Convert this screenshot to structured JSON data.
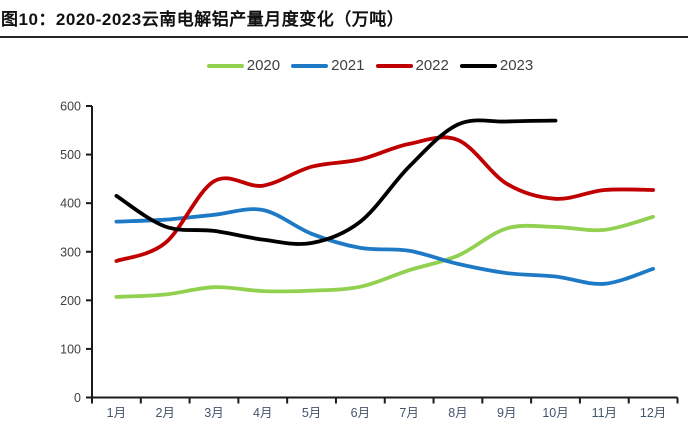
{
  "header": {
    "title": "图10：2020-2023云南电解铝产量月度变化（万吨）"
  },
  "chart_data": {
    "type": "line",
    "title": "图10：2020-2023云南电解铝产量月度变化（万吨）",
    "xlabel": "",
    "ylabel": "",
    "unit": "万吨",
    "categories": [
      "1月",
      "2月",
      "3月",
      "4月",
      "5月",
      "6月",
      "7月",
      "8月",
      "9月",
      "10月",
      "11月",
      "12月"
    ],
    "y_ticks": [
      "0",
      "100",
      "200",
      "300",
      "400",
      "500",
      "600"
    ],
    "ylim": [
      0,
      600
    ],
    "ytick_step": 100,
    "grid": false,
    "legend_position": "top",
    "series": [
      {
        "name": "2020",
        "color": "#92D050",
        "values": [
          207,
          212,
          227,
          219,
          220,
          228,
          262,
          292,
          348,
          351,
          345,
          372
        ]
      },
      {
        "name": "2021",
        "color": "#1F7AC5",
        "values": [
          362,
          366,
          376,
          386,
          337,
          308,
          302,
          275,
          256,
          249,
          234,
          265
        ]
      },
      {
        "name": "2022",
        "color": "#C00000",
        "values": [
          281,
          318,
          445,
          436,
          475,
          490,
          522,
          530,
          440,
          409,
          427,
          427
        ]
      },
      {
        "name": "2023",
        "color": "#000000",
        "values": [
          415,
          352,
          343,
          325,
          318,
          362,
          475,
          562,
          568,
          570
        ]
      }
    ]
  },
  "style_colors": {
    "axis": "#1a1a1a",
    "tick_label": "#44546A",
    "y_label": "#3f3f3f"
  }
}
